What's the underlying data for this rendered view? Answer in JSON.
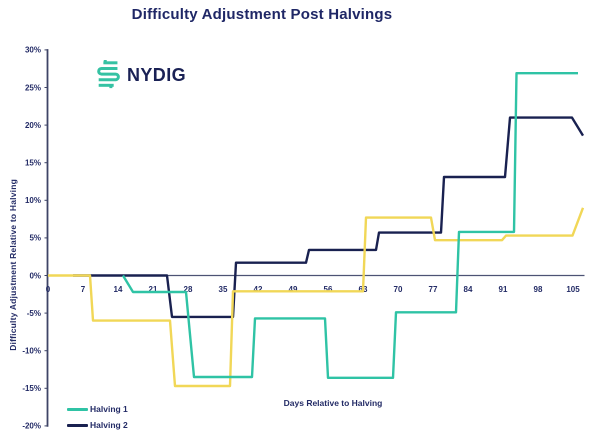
{
  "page": {
    "background": "#ffffff"
  },
  "header": {
    "title": "Difficulty Adjustment Post Halvings"
  },
  "logo": {
    "text": "NYDIG",
    "icon": "nydig-s-mark",
    "icon_color": "#35c2a3",
    "text_color": "#1a2155"
  },
  "legend": {
    "items": [
      {
        "label": "Halving 1",
        "color": "#2fc3a5"
      },
      {
        "label": "Halving 2",
        "color": "#192150"
      }
    ]
  },
  "axis_colors": {
    "text": "#232b66",
    "axis_line": "#3e4466",
    "zero_line": "#4d5374"
  },
  "chart_data": {
    "type": "line",
    "title": "Difficulty Adjustment Post Halvings",
    "xlabel": "Days Relative to Halving",
    "ylabel": "Difficulty Adjustment Relative to Halving",
    "x_ticks": [
      0,
      7,
      14,
      21,
      28,
      35,
      42,
      49,
      56,
      63,
      70,
      77,
      84,
      91,
      98,
      105
    ],
    "y_ticks": [
      30,
      25,
      20,
      15,
      10,
      5,
      0,
      -5,
      -10,
      -15,
      -20
    ],
    "y_tick_suffix": "%",
    "xlim": [
      0,
      107
    ],
    "ylim": [
      -20,
      30
    ],
    "grid": false,
    "zero_line": true,
    "legend_position": "bottom-left",
    "series": [
      {
        "name": "Halving 1",
        "color": "#2fc3a5",
        "points_day_pct": [
          [
            15,
            0
          ],
          [
            17,
            -2.2
          ],
          [
            27.6,
            -2.2
          ],
          [
            29.2,
            -13.5
          ],
          [
            40.8,
            -13.5
          ],
          [
            41.4,
            -5.7
          ],
          [
            55.4,
            -5.7
          ],
          [
            56,
            -13.6
          ],
          [
            69,
            -13.6
          ],
          [
            69.6,
            -4.9
          ],
          [
            81.6,
            -4.9
          ],
          [
            82.2,
            5.8
          ],
          [
            93.2,
            5.8
          ],
          [
            93.7,
            26.9
          ],
          [
            106,
            26.9
          ]
        ]
      },
      {
        "name": "Halving 2",
        "color": "#192150",
        "points_day_pct": [
          [
            5,
            0
          ],
          [
            23.8,
            0
          ],
          [
            24.8,
            -5.5
          ],
          [
            37,
            -5.5
          ],
          [
            37.6,
            1.7
          ],
          [
            51.6,
            1.7
          ],
          [
            52.2,
            3.4
          ],
          [
            65.6,
            3.4
          ],
          [
            66.2,
            5.7
          ],
          [
            78.6,
            5.7
          ],
          [
            79.2,
            13.1
          ],
          [
            91.4,
            13.1
          ],
          [
            92.4,
            21
          ],
          [
            104.8,
            21
          ],
          [
            107,
            18.6
          ]
        ]
      },
      {
        "name": "",
        "color": "#f1d757",
        "in_visible_legend": false,
        "points_day_pct": [
          [
            0,
            0
          ],
          [
            8.4,
            0
          ],
          [
            9,
            -6
          ],
          [
            24.4,
            -6
          ],
          [
            25.4,
            -14.7
          ],
          [
            36.4,
            -14.7
          ],
          [
            37,
            -2.1
          ],
          [
            63,
            -2.1
          ],
          [
            63.6,
            7.7
          ],
          [
            76.6,
            7.7
          ],
          [
            77.4,
            4.7
          ],
          [
            90.8,
            4.7
          ],
          [
            91.6,
            5.3
          ],
          [
            104.9,
            5.3
          ],
          [
            107,
            9
          ]
        ]
      }
    ]
  }
}
